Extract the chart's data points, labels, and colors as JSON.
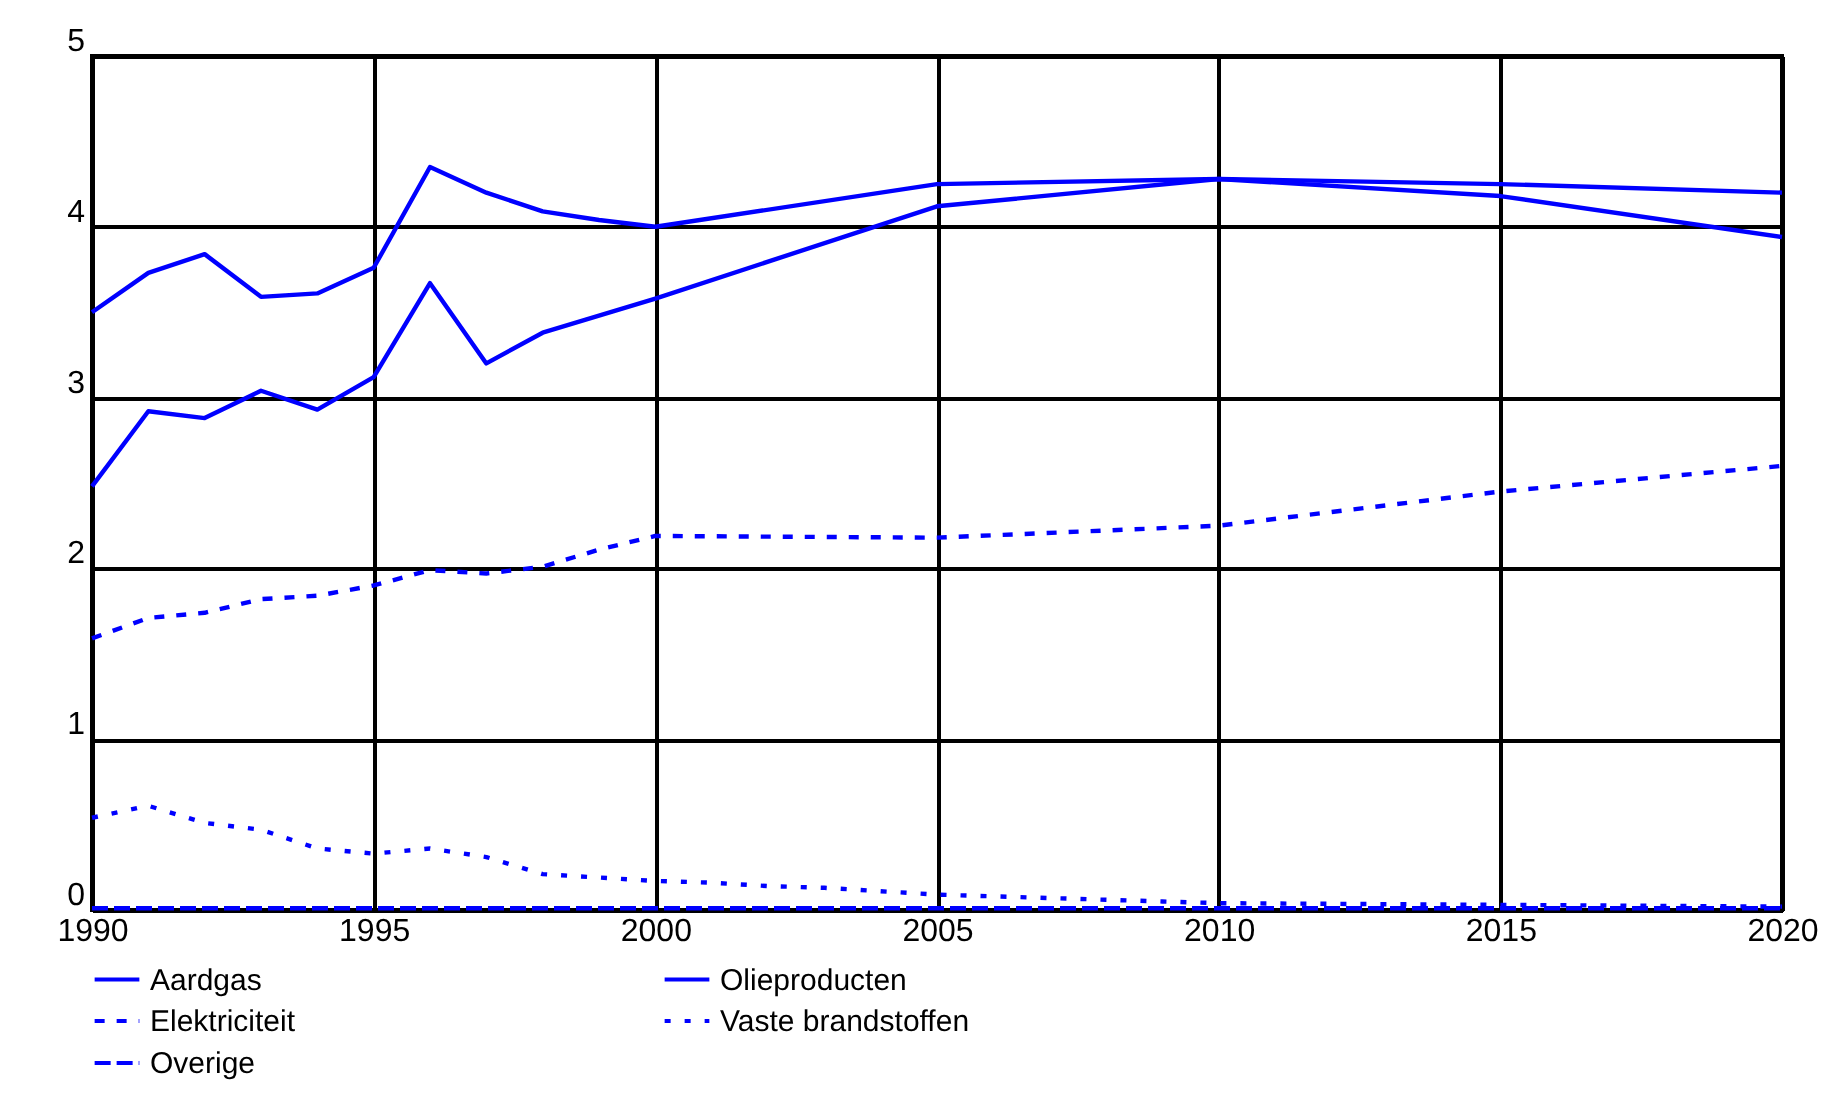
{
  "chart_data": {
    "type": "line",
    "xlim": [
      1990,
      2020
    ],
    "xticks": [
      1990,
      1995,
      2000,
      2005,
      2010,
      2015,
      2020
    ],
    "ylim": [
      0,
      5
    ],
    "yticks": [
      0,
      1,
      2,
      3,
      4,
      5
    ],
    "grid": true,
    "legend": "bottom",
    "marker": "none",
    "series": [
      {
        "name": "Aardgas",
        "color": "#0000ff",
        "line_style": "solid",
        "x": [
          1990,
          1991,
          1992,
          1993,
          1994,
          1995,
          1996,
          1997,
          1998,
          1999,
          2000,
          2005,
          2010,
          2015,
          2020
        ],
        "values": [
          3.5,
          3.73,
          3.84,
          3.59,
          3.61,
          3.76,
          4.35,
          4.2,
          4.09,
          4.04,
          4.0,
          4.25,
          4.28,
          4.25,
          4.2
        ]
      },
      {
        "name": "Olieproducten",
        "color": "#0000ff",
        "line_style": "solid",
        "x": [
          1990,
          1991,
          1992,
          1993,
          1994,
          1995,
          1996,
          1997,
          1998,
          1999,
          2000,
          2005,
          2010,
          2015,
          2020
        ],
        "values": [
          2.48,
          2.92,
          2.88,
          3.04,
          2.93,
          3.12,
          3.67,
          3.2,
          3.38,
          3.48,
          3.58,
          4.12,
          4.28,
          4.18,
          3.94
        ]
      },
      {
        "name": "Elektriciteit",
        "color": "#0000ff",
        "line_style": "dashed",
        "x": [
          1990,
          1991,
          1992,
          1993,
          1994,
          1995,
          1996,
          1997,
          1998,
          1999,
          2000,
          2005,
          2010,
          2015,
          2020
        ],
        "values": [
          1.59,
          1.71,
          1.74,
          1.82,
          1.84,
          1.9,
          1.99,
          1.97,
          2.01,
          2.11,
          2.19,
          2.18,
          2.25,
          2.45,
          2.6
        ]
      },
      {
        "name": "Vaste brandstoffen",
        "color": "#0000ff",
        "line_style": "dotted",
        "x": [
          1990,
          1991,
          1992,
          1993,
          1994,
          1995,
          1996,
          1997,
          1998,
          1999,
          2000,
          2001,
          2002,
          2003,
          2004,
          2005,
          2006,
          2007,
          2008,
          2009,
          2010,
          2015,
          2020
        ],
        "values": [
          0.54,
          0.61,
          0.51,
          0.47,
          0.36,
          0.33,
          0.36,
          0.31,
          0.21,
          0.19,
          0.17,
          0.16,
          0.14,
          0.13,
          0.11,
          0.09,
          0.08,
          0.07,
          0.06,
          0.05,
          0.04,
          0.03,
          0.02
        ]
      },
      {
        "name": "Overige",
        "color": "#0000ff",
        "line_style": "dashdot",
        "x": [
          1990,
          2000,
          2010,
          2020
        ],
        "values": [
          0.01,
          0.01,
          0.01,
          0.01
        ]
      }
    ]
  }
}
